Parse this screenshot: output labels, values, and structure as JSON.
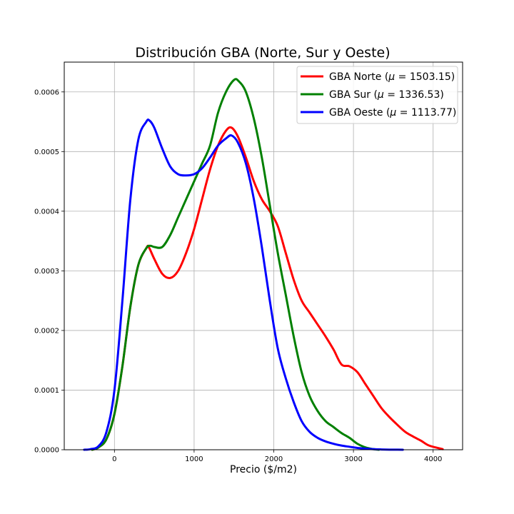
{
  "chart_data": {
    "type": "line",
    "title": "Distribución GBA (Norte, Sur y Oeste)",
    "xlabel": "Precio ($/m2)",
    "ylabel": "",
    "xlim": [
      -630,
      4370
    ],
    "ylim": [
      0,
      0.00065
    ],
    "xticks": [
      0,
      1000,
      2000,
      3000,
      4000
    ],
    "xtick_labels": [
      "0",
      "1000",
      "2000",
      "3000",
      "4000"
    ],
    "yticks": [
      0,
      0.0001,
      0.0002,
      0.0003,
      0.0004,
      0.0005,
      0.0006
    ],
    "ytick_labels": [
      "0.0000",
      "0.0001",
      "0.0002",
      "0.0003",
      "0.0004",
      "0.0005",
      "0.0006"
    ],
    "grid": true,
    "legend_position": "top-right",
    "series": [
      {
        "name": "GBA Norte ($\\mu = 1503.15$)",
        "legend_prefix": "GBA Norte (",
        "legend_mu": "μ",
        "legend_value": " = 1503.15)",
        "color": "#ff0000",
        "x": [
          -280,
          -200,
          -100,
          0,
          100,
          200,
          300,
          400,
          430,
          500,
          600,
          700,
          800,
          900,
          1000,
          1100,
          1200,
          1300,
          1400,
          1470,
          1550,
          1650,
          1750,
          1850,
          1950,
          2050,
          2150,
          2250,
          2350,
          2450,
          2550,
          2650,
          2750,
          2850,
          2950,
          3050,
          3150,
          3250,
          3350,
          3450,
          3550,
          3650,
          3750,
          3850,
          3950,
          4120
        ],
        "y": [
          0.0,
          4e-06,
          1.8e-05,
          6e-05,
          0.00014,
          0.00024,
          0.00031,
          0.000338,
          0.00034,
          0.00032,
          0.000295,
          0.000288,
          0.0003,
          0.00033,
          0.00037,
          0.00042,
          0.00047,
          0.00051,
          0.000535,
          0.00054,
          0.000525,
          0.00049,
          0.00045,
          0.00042,
          0.0004,
          0.000375,
          0.00033,
          0.000285,
          0.00025,
          0.00023,
          0.00021,
          0.00019,
          0.000168,
          0.000143,
          0.00014,
          0.00013,
          0.00011,
          9e-05,
          7e-05,
          5.5e-05,
          4.2e-05,
          3e-05,
          2.2e-05,
          1.5e-05,
          7e-06,
          1e-06
        ]
      },
      {
        "name": "GBA Sur ($\\mu = 1336.53$)",
        "legend_prefix": "GBA Sur (",
        "legend_mu": "μ",
        "legend_value": " = 1336.53)",
        "color": "#008000",
        "x": [
          -280,
          -200,
          -100,
          0,
          100,
          200,
          300,
          400,
          450,
          500,
          600,
          700,
          800,
          900,
          1000,
          1100,
          1200,
          1300,
          1400,
          1500,
          1560,
          1650,
          1750,
          1850,
          1950,
          2050,
          2150,
          2250,
          2350,
          2450,
          2550,
          2650,
          2750,
          2850,
          2950,
          3050,
          3150,
          3250,
          3320
        ],
        "y": [
          0.0,
          4e-06,
          1.8e-05,
          6e-05,
          0.00014,
          0.00024,
          0.00031,
          0.000338,
          0.000342,
          0.00034,
          0.00034,
          0.00036,
          0.00039,
          0.00042,
          0.00045,
          0.00048,
          0.00051,
          0.000565,
          0.0006,
          0.00062,
          0.000618,
          0.0006,
          0.000555,
          0.00049,
          0.00041,
          0.00033,
          0.00026,
          0.00019,
          0.00013,
          9e-05,
          6.5e-05,
          4.8e-05,
          3.8e-05,
          2.8e-05,
          2e-05,
          1e-05,
          4e-06,
          1e-06,
          0.0
        ]
      },
      {
        "name": "GBA Oeste ($\\mu = 1113.77$)",
        "legend_prefix": "GBA Oeste (",
        "legend_mu": "μ",
        "legend_value": " = 1113.77)",
        "color": "#0000ff",
        "x": [
          -380,
          -300,
          -200,
          -100,
          0,
          100,
          200,
          300,
          400,
          440,
          500,
          600,
          700,
          800,
          900,
          1000,
          1100,
          1200,
          1300,
          1400,
          1470,
          1550,
          1650,
          1750,
          1850,
          1950,
          2050,
          2150,
          2250,
          2350,
          2450,
          2550,
          2650,
          2750,
          2850,
          2950,
          3050,
          3150,
          3250,
          3350,
          3450,
          3550,
          3620
        ],
        "y": [
          0.0,
          1e-06,
          6e-06,
          3e-05,
          0.0001,
          0.00025,
          0.00042,
          0.00052,
          0.00055,
          0.000552,
          0.00054,
          0.000505,
          0.000475,
          0.000462,
          0.00046,
          0.000462,
          0.000472,
          0.00049,
          0.00051,
          0.000522,
          0.000527,
          0.000515,
          0.00048,
          0.00042,
          0.00034,
          0.00025,
          0.00017,
          0.00012,
          8e-05,
          4.8e-05,
          3e-05,
          2e-05,
          1.4e-05,
          1e-05,
          7e-06,
          5e-06,
          3e-06,
          2e-06,
          1e-06,
          5e-07,
          2e-07,
          1e-07,
          0.0
        ]
      }
    ]
  }
}
